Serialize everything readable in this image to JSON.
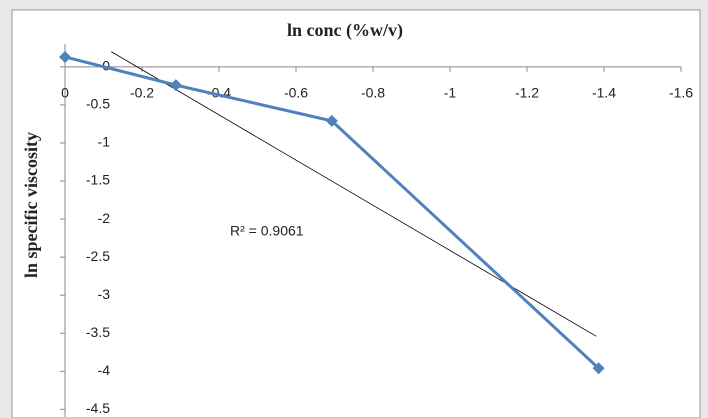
{
  "chart_data": {
    "type": "line",
    "title": "ln conc (%w/v)",
    "y_label": "ln specific viscosity",
    "x": [
      0,
      -0.288,
      -0.693,
      -1.386
    ],
    "series": [
      {
        "color": "#4f81bd",
        "values": [
          0.13,
          -0.24,
          -0.71,
          -3.96
        ]
      }
    ],
    "trendline": {
      "x": [
        -0.12,
        -1.38
      ],
      "y": [
        0.2,
        -3.54
      ],
      "color": "#000000"
    },
    "annotation": "R² = 0.9061",
    "xlim": [
      0,
      -1.6
    ],
    "xticks": [
      0,
      -0.2,
      -0.4,
      -0.6,
      -0.8,
      -1,
      -1.2,
      -1.4,
      -1.6
    ],
    "ylim": [
      -4.6,
      0.3
    ],
    "yticks": [
      0,
      -0.5,
      -1,
      -1.5,
      -2,
      -2.5,
      -3,
      -3.5,
      -4,
      -4.5
    ]
  }
}
